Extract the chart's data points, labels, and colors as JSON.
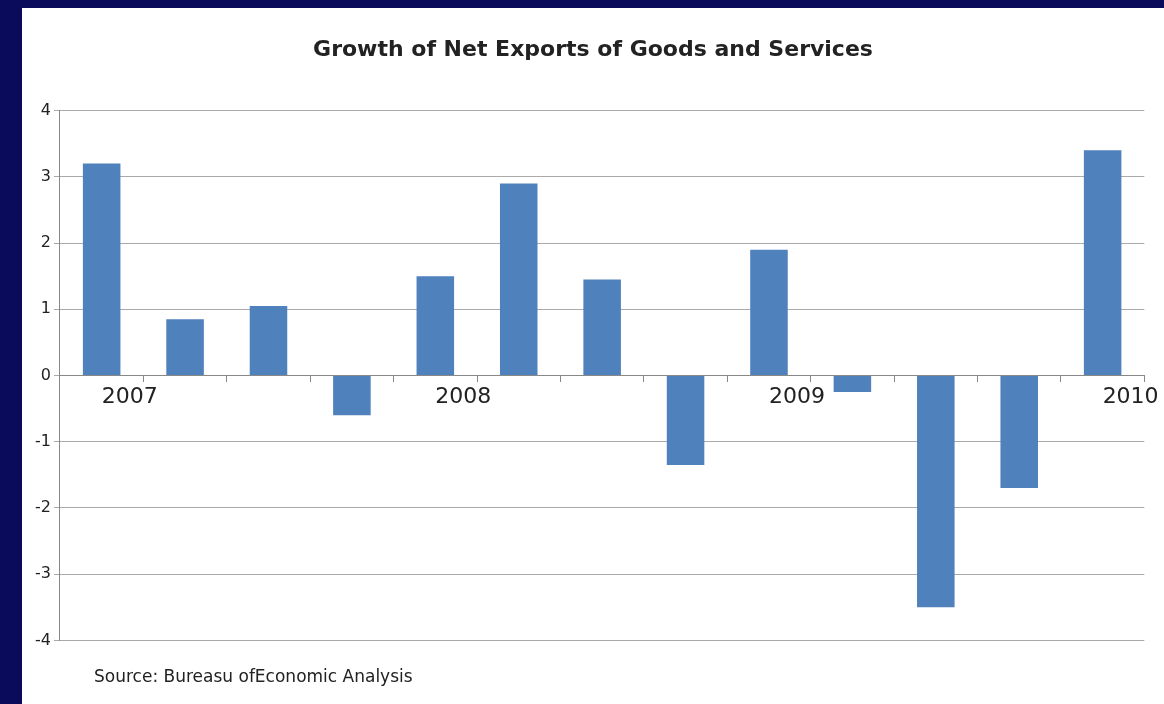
{
  "chart_data": {
    "type": "bar",
    "title": "Growth of Net Exports of Goods and Services",
    "categories": [
      "2007",
      null,
      null,
      null,
      "2008",
      null,
      null,
      null,
      "2009",
      null,
      null,
      null,
      "2010"
    ],
    "values": [
      3.2,
      0.85,
      1.05,
      -0.6,
      1.5,
      2.9,
      1.45,
      -1.35,
      1.9,
      -0.25,
      -3.5,
      -1.7,
      3.4
    ],
    "color": "#4f81bd",
    "ylim": [
      -4,
      4
    ],
    "yticks": [
      -4,
      -3,
      -2,
      -1,
      0,
      1,
      2,
      3,
      4
    ],
    "grid": "y",
    "annotations": [
      "Source: Bureasu ofEconomic Analysis"
    ]
  }
}
